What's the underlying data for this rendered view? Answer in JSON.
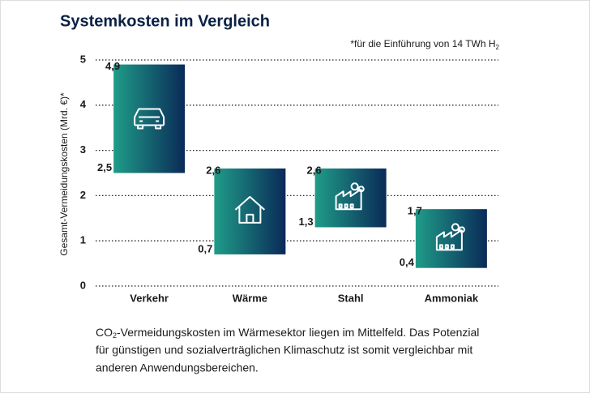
{
  "chart_data": {
    "type": "range-bar",
    "title": "Systemkosten im Vergleich",
    "footnote": {
      "text": "*für die Einführung von 14 TWh H",
      "subscript": "2"
    },
    "y_label": "Gesamt-Vermeidungskosten (Mrd. €)*",
    "categories": [
      "Verkehr",
      "Wärme",
      "Stahl",
      "Ammoniak"
    ],
    "high": {
      "values": [
        4.9,
        2.6,
        2.6,
        1.7
      ],
      "value_labels": [
        "4,9",
        "2,6",
        "2,6",
        "1,7"
      ]
    },
    "low": {
      "values": [
        2.5,
        0.7,
        1.3,
        0.4
      ],
      "value_labels": [
        "2,5",
        "0,7",
        "1,3",
        "0,4"
      ]
    },
    "colors": [
      "#1f9c88",
      "#0a2a58"
    ],
    "ylim": [
      0,
      5
    ],
    "yticks": [
      0,
      1,
      2,
      3,
      4,
      5
    ],
    "grid": true,
    "caption": {
      "prefix": "CO",
      "subscript": "2",
      "lines": [
        "-Vermeidungskosten im Wärmesektor liegen im Mittelfeld. Das Potenzial",
        "für günstigen und sozialverträglichen Klimaschutz ist somit vergleichbar mit",
        "anderen Anwendungsbereichen."
      ]
    }
  }
}
